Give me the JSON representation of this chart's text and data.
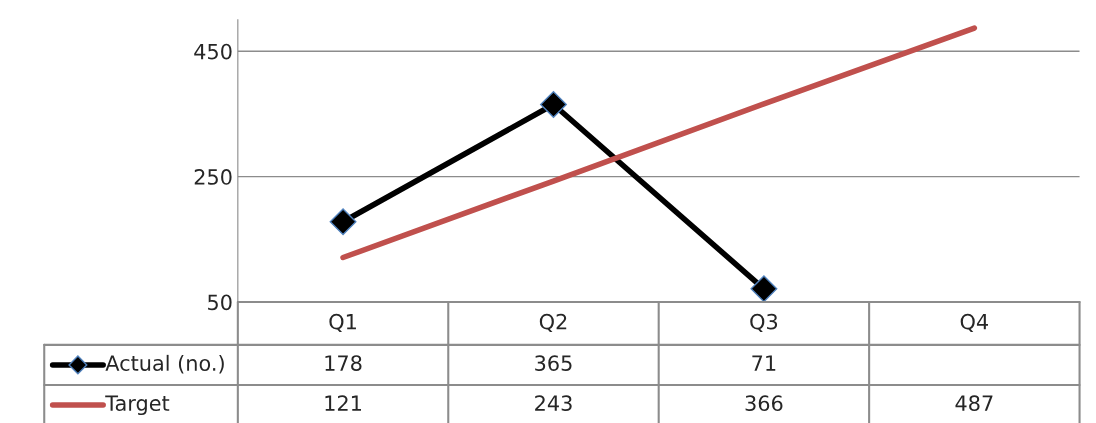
{
  "chart_data": {
    "type": "line",
    "categories": [
      "Q1",
      "Q2",
      "Q3",
      "Q4"
    ],
    "series": [
      {
        "name": "Actual (no.)",
        "color": "#000000",
        "marker": "diamond",
        "values": [
          178,
          365,
          71,
          null
        ]
      },
      {
        "name": "Target",
        "color": "#c0504d",
        "marker": "none",
        "values": [
          121,
          243,
          366,
          487
        ]
      }
    ],
    "ylim": [
      50,
      500
    ],
    "yticks": [
      50,
      250,
      450
    ],
    "grid": "y",
    "legend": "bottom",
    "data_labels": true
  }
}
